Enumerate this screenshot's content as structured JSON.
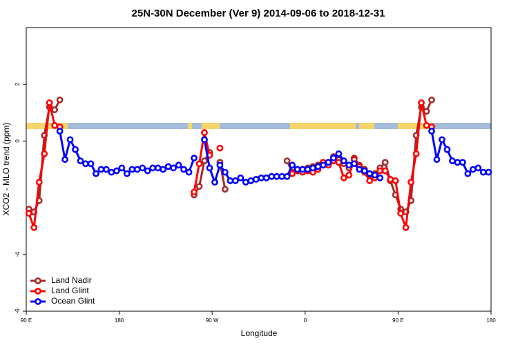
{
  "chart_data": {
    "type": "line",
    "title": "25N-30N December (Ver 9)   2014-09-06 to 2018-12-31",
    "x_label": "Longitude",
    "y_label": "XCO2 - MLO trend (ppm)",
    "xlim": [
      90,
      540
    ],
    "xticks": [
      {
        "value": 90,
        "label": "90 E"
      },
      180,
      {
        "value": 270,
        "label": "90 W"
      },
      {
        "value": 360,
        "label": "0"
      },
      {
        "value": 450,
        "label": "90 E"
      },
      {
        "value": 540,
        "label": "180"
      }
    ],
    "ylim": [
      -6,
      4
    ],
    "yticks": [
      -6,
      -4,
      0,
      2
    ],
    "legend": "bottom-left",
    "x": [
      92.5,
      97.5,
      102.5,
      107.5,
      112.5,
      117.5,
      122.5,
      127.5,
      132.5,
      137.5,
      142.5,
      147.5,
      152.5,
      157.5,
      162.5,
      167.5,
      172.5,
      177.5,
      182.5,
      187.5,
      192.5,
      197.5,
      202.5,
      207.5,
      212.5,
      217.5,
      222.5,
      227.5,
      232.5,
      237.5,
      242.5,
      247.5,
      252.5,
      257.5,
      262.5,
      267.5,
      272.5,
      277.5,
      282.5,
      287.5,
      292.5,
      297.5,
      302.5,
      307.5,
      312.5,
      317.5,
      322.5,
      327.5,
      332.5,
      337.5,
      342.5,
      347.5,
      352.5,
      357.5,
      362.5,
      367.5,
      372.5,
      377.5,
      382.5,
      387.5,
      392.5,
      397.5,
      402.5,
      407.5,
      412.5,
      417.5,
      422.5,
      427.5,
      432.5,
      437.5,
      442.5,
      447.5,
      452.5,
      457.5,
      462.5,
      467.5,
      472.5,
      477.5,
      482.5,
      487.5,
      492.5,
      497.5,
      502.5,
      507.5,
      512.5,
      517.5,
      522.5,
      527.5,
      532.5,
      537.5
    ],
    "series": [
      {
        "name": "Land Nadir",
        "color": "#a52a2a",
        "values": [
          -2.4,
          -2.5,
          -2.1,
          0.2,
          1.2,
          1.1,
          1.45,
          null,
          null,
          null,
          null,
          null,
          null,
          null,
          null,
          null,
          null,
          null,
          null,
          null,
          null,
          null,
          null,
          null,
          null,
          null,
          null,
          null,
          null,
          null,
          null,
          null,
          -1.9,
          -1.6,
          -0.7,
          -0.4,
          null,
          -0.75,
          -1.7,
          null,
          null,
          null,
          null,
          null,
          null,
          null,
          null,
          null,
          null,
          null,
          -0.7,
          -1.1,
          -1.05,
          -1.0,
          -0.95,
          -0.9,
          -0.85,
          -0.75,
          -0.75,
          -0.55,
          -0.65,
          -0.8,
          -0.95,
          -0.6,
          -0.85,
          -1.0,
          -1.2,
          -1.15,
          -0.95,
          -0.75,
          -1.4,
          -1.9,
          -2.4,
          -2.5,
          -2.1,
          0.2,
          1.2,
          1.05,
          1.45,
          null,
          null,
          null,
          null,
          null,
          null,
          null,
          null,
          null,
          null,
          null
        ]
      },
      {
        "name": "Land Glint",
        "color": "#ff0000",
        "values": [
          -2.55,
          -3.05,
          -1.45,
          -0.45,
          1.35,
          0.55,
          0.5,
          null,
          null,
          null,
          null,
          null,
          null,
          null,
          null,
          null,
          null,
          null,
          null,
          null,
          null,
          null,
          null,
          null,
          null,
          null,
          null,
          null,
          null,
          null,
          null,
          null,
          -1.8,
          -0.8,
          0.3,
          -0.5,
          null,
          -0.25,
          null,
          null,
          null,
          null,
          null,
          null,
          null,
          null,
          null,
          null,
          null,
          null,
          null,
          -1.15,
          -1.05,
          -1.1,
          -1.05,
          -1.1,
          -1.0,
          -0.75,
          -0.85,
          -0.7,
          -0.75,
          -1.3,
          -1.2,
          -0.65,
          -0.9,
          -1.1,
          -1.4,
          -1.3,
          -1.05,
          -1.05,
          -1.35,
          -1.4,
          -2.55,
          -3.05,
          -1.45,
          -0.45,
          1.35,
          0.55,
          0.5,
          null,
          null,
          null,
          null,
          null,
          null,
          null,
          null,
          null,
          null,
          null
        ]
      },
      {
        "name": "Ocean Glint",
        "color": "#0000ff",
        "values": [
          null,
          null,
          null,
          null,
          null,
          null,
          0.35,
          -0.65,
          0.05,
          -0.3,
          -0.7,
          -0.8,
          -0.8,
          -1.15,
          -1.0,
          -1.0,
          -1.1,
          -1.05,
          -0.95,
          -1.15,
          -1.0,
          -1.0,
          -0.95,
          -1.05,
          -0.95,
          -0.95,
          -1.0,
          -0.9,
          -0.95,
          -0.85,
          -1.0,
          -1.1,
          -0.6,
          null,
          0.05,
          -0.95,
          -1.45,
          -0.85,
          -1.1,
          -1.4,
          -1.4,
          -1.3,
          -1.45,
          -1.4,
          -1.35,
          -1.3,
          -1.3,
          -1.25,
          -1.25,
          -1.25,
          -1.25,
          -0.85,
          -1.0,
          -1.0,
          -1.0,
          -0.95,
          -0.9,
          -0.85,
          -0.75,
          -0.6,
          -0.45,
          -0.7,
          -0.85,
          -0.8,
          -1.0,
          -1.05,
          -1.15,
          -1.2,
          -1.3,
          null,
          null,
          null,
          null,
          null,
          null,
          null,
          null,
          null,
          0.35,
          -0.65,
          0.05,
          -0.3,
          -0.7,
          -0.75,
          -0.75,
          -1.15,
          -1.0,
          -0.95,
          -1.1,
          -1.1
        ]
      }
    ]
  }
}
